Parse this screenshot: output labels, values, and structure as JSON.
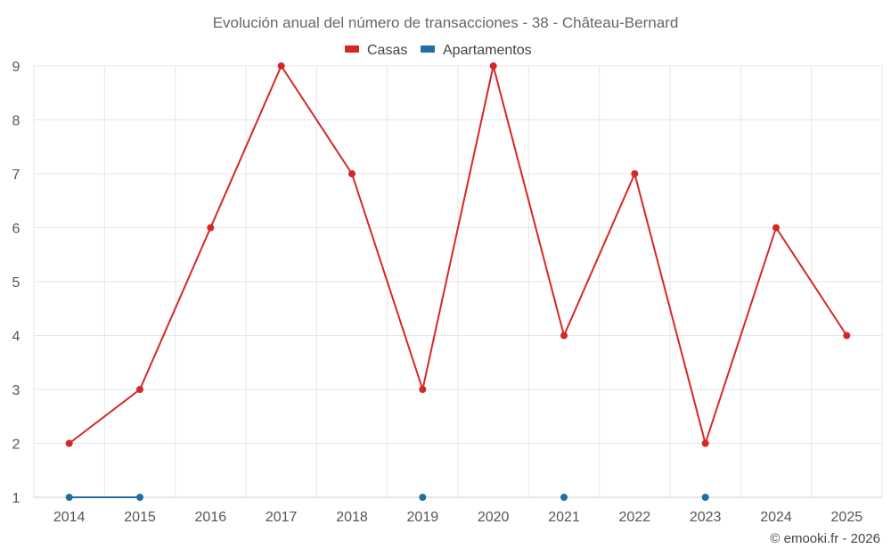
{
  "chart_data": {
    "type": "line",
    "title": "Evolución anual del número de transacciones - 38 - Château-Bernard",
    "categories": [
      "2014",
      "2015",
      "2016",
      "2017",
      "2018",
      "2019",
      "2020",
      "2021",
      "2022",
      "2023",
      "2024",
      "2025"
    ],
    "ylim": [
      1,
      9
    ],
    "yticks": [
      "1",
      "2",
      "3",
      "4",
      "5",
      "6",
      "7",
      "8",
      "9"
    ],
    "legend_position": "top-center",
    "series": [
      {
        "name": "Casas",
        "color": "#d62728",
        "values": [
          2,
          3,
          6,
          9,
          7,
          3,
          9,
          4,
          7,
          2,
          6,
          4
        ]
      },
      {
        "name": "Apartamentos",
        "color": "#1f6f9f",
        "values": [
          1,
          1,
          null,
          null,
          null,
          1,
          null,
          1,
          null,
          1,
          null,
          null
        ]
      }
    ]
  },
  "credits": "© emooki.fr - 2026"
}
